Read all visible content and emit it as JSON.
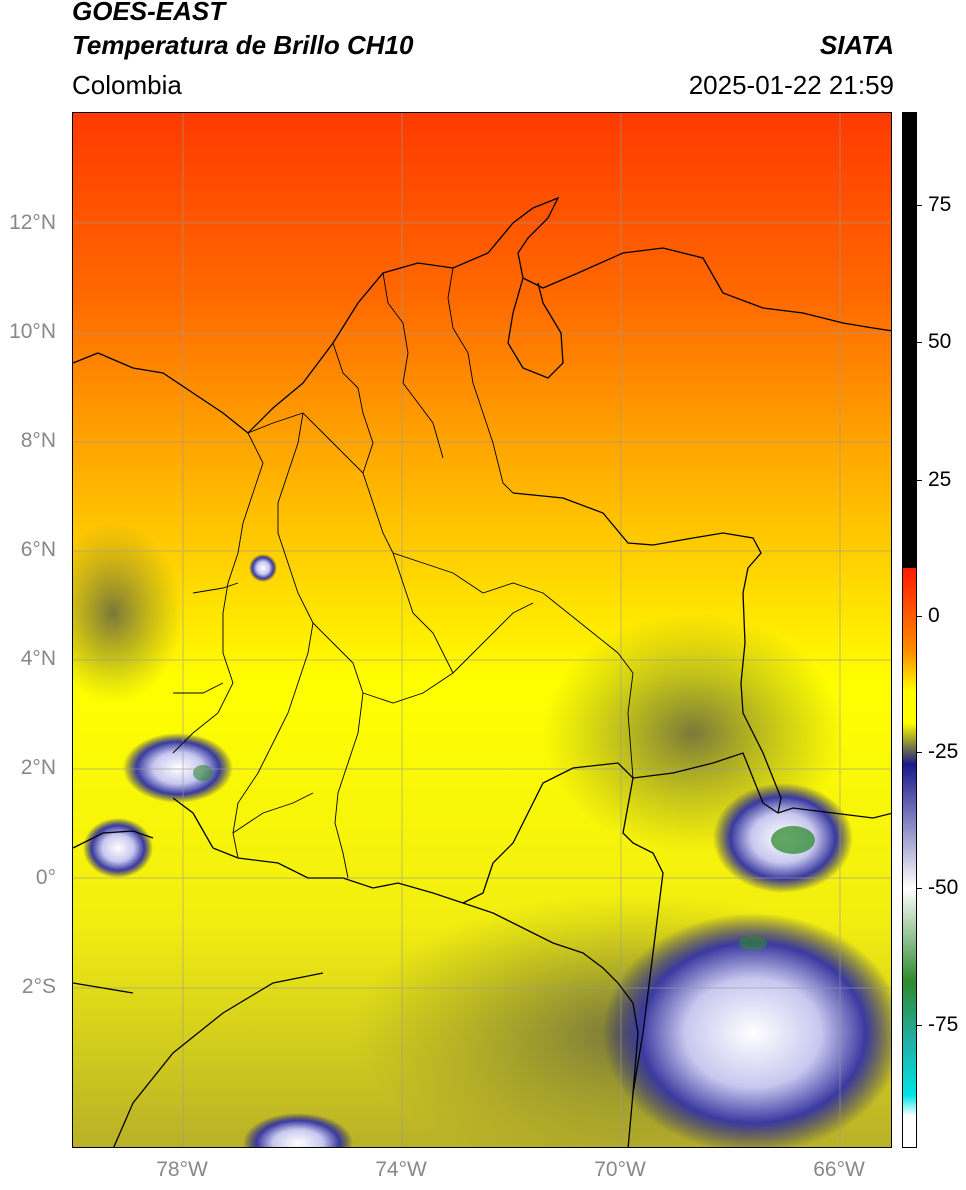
{
  "header": {
    "satellite": "GOES-EAST",
    "product": "Temperatura de Brillo CH10",
    "region": "Colombia",
    "agency": "SIATA",
    "timestamp": "2025-01-22 21:59"
  },
  "map": {
    "lat_ticks": [
      "12°N",
      "10°N",
      "8°N",
      "6°N",
      "4°N",
      "2°N",
      "0°",
      "2°S"
    ],
    "lon_ticks": [
      "78°W",
      "74°W",
      "70°W",
      "66°W"
    ]
  },
  "colorbar": {
    "ticks": [
      "75",
      "50",
      "25",
      "0",
      "-25",
      "-50",
      "-75"
    ],
    "colors": {
      "top": "#000000",
      "red": "#ff1a00",
      "orange": "#ff8c00",
      "yellow": "#ffff00",
      "olive": "#8a8a3a",
      "navy": "#1a1a8c",
      "white": "#ffffff",
      "green": "#2e8b2e",
      "teal": "#20b2aa",
      "cyan": "#00e5e5"
    }
  }
}
